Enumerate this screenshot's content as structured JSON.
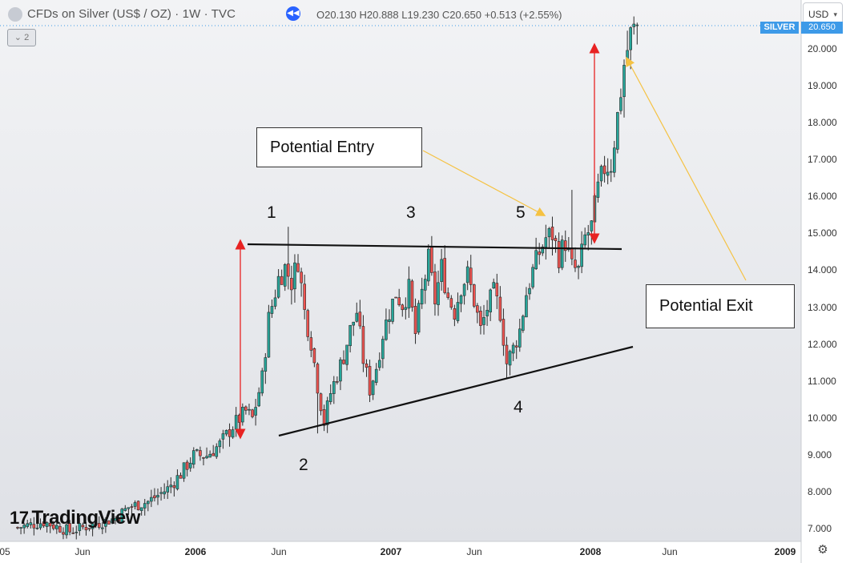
{
  "header": {
    "title": "CFDs on Silver (US$ / OZ) · 1W · TVC",
    "ohlc": "O20.130 H20.888 L19.230 C20.650 +0.513 (+2.55%)",
    "badge": "⌄ 2",
    "currency": "USD",
    "symbol_tag": "SILVER",
    "price_tag": "20.650"
  },
  "watermark": "TradingView",
  "colors": {
    "up": "#26a69a",
    "down": "#ef5350",
    "candle": "#2b2b2b",
    "arrow": "#e82222",
    "pointer": "#f5c242",
    "price_line": "#3d9ae8",
    "background_top": "#f2f3f5",
    "background_bottom": "#dfe1e6"
  },
  "annotations": {
    "entry_label": "Potential Entry",
    "exit_label": "Potential Exit",
    "points": [
      "1",
      "2",
      "3",
      "4",
      "5"
    ]
  },
  "chart_data": {
    "type": "candlestick",
    "y_axis": {
      "ticks": [
        "20.000",
        "19.000",
        "18.000",
        "17.000",
        "16.000",
        "15.000",
        "14.000",
        "13.000",
        "12.000",
        "11.000",
        "10.000",
        "9.000",
        "8.000",
        "7.000"
      ],
      "range": [
        6.7,
        21.3
      ]
    },
    "x_axis": {
      "ticks": [
        {
          "label": "05",
          "year": false
        },
        {
          "label": "Jun",
          "year": false
        },
        {
          "label": "2006",
          "year": true
        },
        {
          "label": "Jun",
          "year": false
        },
        {
          "label": "2007",
          "year": true
        },
        {
          "label": "Jun",
          "year": false
        },
        {
          "label": "2008",
          "year": true
        },
        {
          "label": "Jun",
          "year": false
        },
        {
          "label": "2009",
          "year": true
        }
      ]
    },
    "close_path": [
      [
        0,
        7.05
      ],
      [
        8,
        7.2
      ],
      [
        16,
        6.95
      ],
      [
        22,
        7.1
      ],
      [
        30,
        7.3
      ],
      [
        34,
        7.6
      ],
      [
        40,
        7.75
      ],
      [
        46,
        8.1
      ],
      [
        50,
        8.5
      ],
      [
        54,
        9.0
      ],
      [
        58,
        9.0
      ],
      [
        62,
        9.3
      ],
      [
        66,
        9.8
      ],
      [
        70,
        10.2
      ],
      [
        72,
        10.0
      ],
      [
        75,
        11.1
      ],
      [
        77,
        12.7
      ],
      [
        80,
        13.8
      ],
      [
        82,
        14.1
      ],
      [
        84,
        13.7
      ],
      [
        86,
        14.3
      ],
      [
        88,
        12.9
      ],
      [
        90,
        12.1
      ],
      [
        92,
        10.9
      ],
      [
        94,
        9.9
      ],
      [
        96,
        10.7
      ],
      [
        98,
        11.2
      ],
      [
        100,
        11.7
      ],
      [
        102,
        12.4
      ],
      [
        104,
        12.9
      ],
      [
        106,
        11.6
      ],
      [
        108,
        10.8
      ],
      [
        110,
        11.4
      ],
      [
        112,
        12.3
      ],
      [
        114,
        12.9
      ],
      [
        116,
        13.4
      ],
      [
        118,
        13.1
      ],
      [
        120,
        13.5
      ],
      [
        122,
        12.3
      ],
      [
        124,
        13.4
      ],
      [
        126,
        14.3
      ],
      [
        128,
        13.2
      ],
      [
        130,
        14.1
      ],
      [
        132,
        13.3
      ],
      [
        134,
        12.9
      ],
      [
        136,
        13.6
      ],
      [
        138,
        13.9
      ],
      [
        140,
        13.2
      ],
      [
        142,
        12.4
      ],
      [
        144,
        13.0
      ],
      [
        146,
        13.4
      ],
      [
        148,
        12.9
      ],
      [
        150,
        11.5
      ],
      [
        152,
        11.9
      ],
      [
        154,
        12.4
      ],
      [
        156,
        13.4
      ],
      [
        158,
        14.0
      ],
      [
        160,
        14.5
      ],
      [
        162,
        14.9
      ],
      [
        164,
        15.0
      ],
      [
        166,
        14.4
      ],
      [
        168,
        14.8
      ],
      [
        170,
        14.1
      ],
      [
        172,
        14.0
      ],
      [
        174,
        14.9
      ],
      [
        176,
        15.2
      ],
      [
        178,
        16.2
      ],
      [
        180,
        16.8
      ],
      [
        182,
        16.9
      ],
      [
        184,
        18.2
      ],
      [
        186,
        19.6
      ],
      [
        188,
        20.4
      ],
      [
        190,
        20.65
      ]
    ],
    "lows": [
      [
        92,
        9.6
      ],
      [
        150,
        11.1
      ]
    ],
    "highs": [
      [
        83,
        15.2
      ],
      [
        131,
        14.7
      ],
      [
        170,
        16.2
      ],
      [
        189,
        20.9
      ]
    ]
  }
}
